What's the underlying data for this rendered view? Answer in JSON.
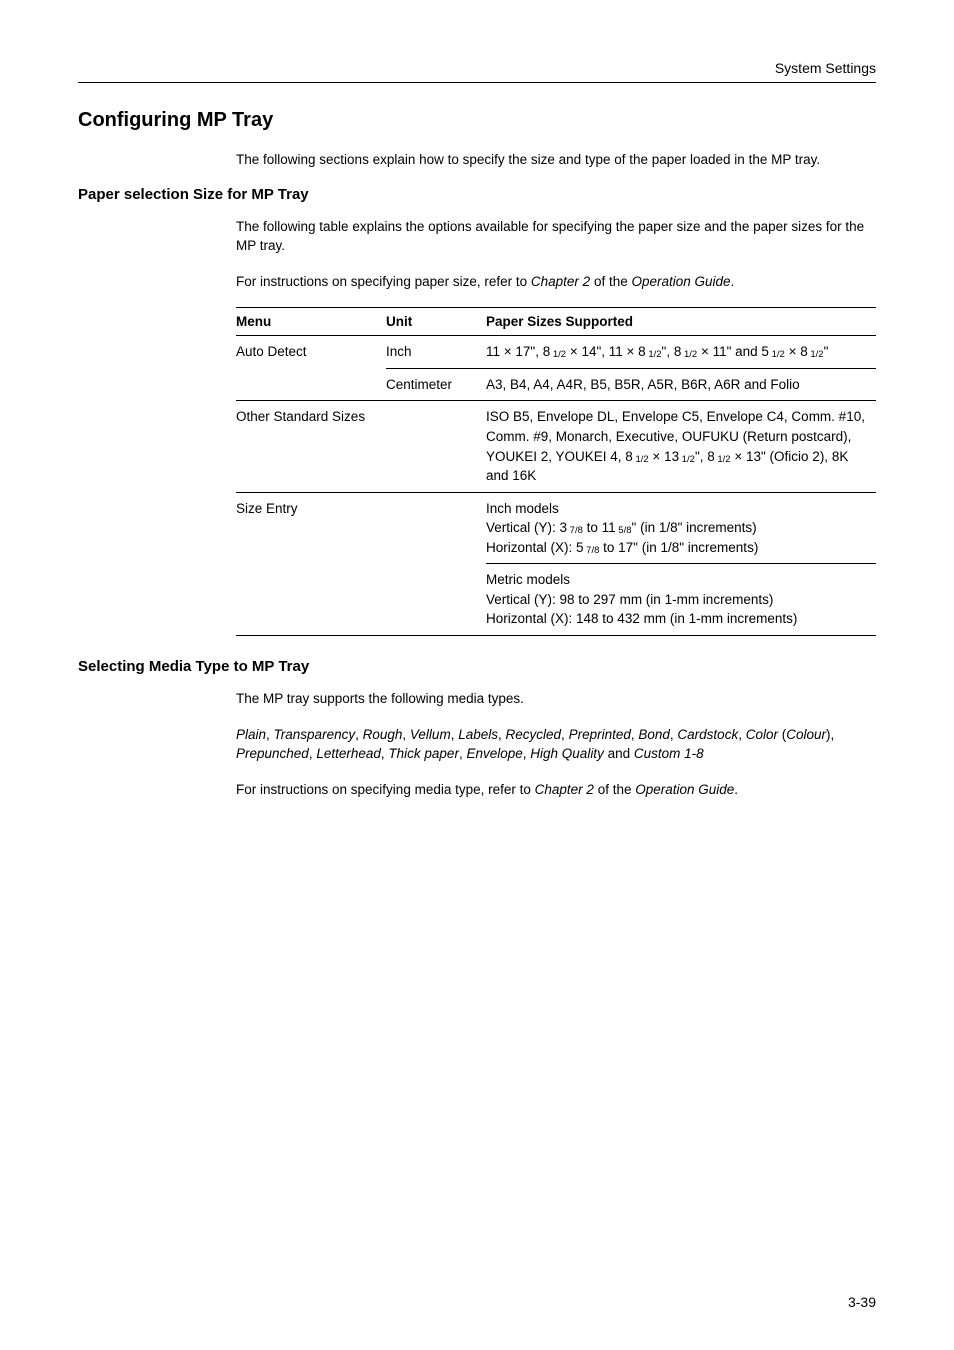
{
  "header": {
    "section_title": "System Settings"
  },
  "h1": "Configuring MP Tray",
  "intro": "The following sections explain how to specify the size and type of the paper loaded in the MP tray.",
  "section1": {
    "title": "Paper selection Size for MP Tray",
    "p1": "The following table explains the options available for specifying the paper size and the paper sizes for the MP tray.",
    "p2_a": "For instructions on specifying paper size, refer to ",
    "p2_i1": "Chapter 2",
    "p2_b": " of the ",
    "p2_i2": "Operation Guide",
    "p2_c": "."
  },
  "table": {
    "head": {
      "menu": "Menu",
      "unit": "Unit",
      "sizes": "Paper Sizes Supported"
    },
    "r1": {
      "menu": "Auto Detect",
      "unit": "Inch"
    },
    "r1_sizes": {
      "a": "11 × 17\", 8",
      "s1": " 1/2",
      "b": " × 14\", 11 × 8",
      "s2": " 1/2",
      "c": "\", 8",
      "s3": " 1/2",
      "d": " × 11\" and 5",
      "s4": " 1/2",
      "e": " × 8",
      "s5": " 1/2",
      "f": "\""
    },
    "r2": {
      "unit": "Centimeter",
      "sizes": "A3, B4, A4, A4R, B5, B5R, A5R, B6R, A6R and Folio"
    },
    "r3": {
      "menu": "Other Standard Sizes"
    },
    "r3_sizes": {
      "a": "ISO B5, Envelope DL, Envelope C5, Envelope C4, Comm. #10, Comm. #9, Monarch, Executive, OUFUKU (Return postcard), YOUKEI 2, YOUKEI 4, 8",
      "s1": " 1/2",
      "b": " × 13",
      "s2": " 1/2",
      "c": "\", 8",
      "s3": " 1/2",
      "d": " × 13\" (Oficio 2), 8K and 16K"
    },
    "r4": {
      "menu": "Size Entry"
    },
    "r4_sizes": {
      "l1": "Inch models",
      "l2a": "Vertical (Y): 3",
      "l2s1": " 7/8",
      "l2b": " to 11",
      "l2s2": " 5/8",
      "l2c": "\" (in 1/8\" increments)",
      "l3a": "Horizontal (X): 5",
      "l3s1": " 7/8",
      "l3b": " to 17\" (in 1/8\" increments)"
    },
    "r5_sizes": {
      "l1": "Metric models",
      "l2": "Vertical (Y): 98 to 297 mm (in 1-mm increments)",
      "l3": "Horizontal (X): 148 to 432 mm (in 1-mm increments)"
    }
  },
  "section2": {
    "title": "Selecting Media Type to MP Tray",
    "p1": "The MP tray supports the following media types.",
    "types": {
      "i1": "Plain",
      "c1": ", ",
      "i2": "Transparency",
      "c2": ", ",
      "i3": "Rough",
      "c3": ", ",
      "i4": "Vellum",
      "c4": ", ",
      "i5": "Labels",
      "c5": ", ",
      "i6": "Recycled",
      "c6": ", ",
      "i7": "Preprinted",
      "c7": ", ",
      "i8": "Bond",
      "c8": ", ",
      "i9": "Cardstock",
      "c9": ", ",
      "i10": "Color",
      "c10": " (",
      "i11": "Colour",
      "c11": "), ",
      "i12": "Prepunched",
      "c12": ", ",
      "i13": "Letterhead",
      "c13": ", ",
      "i14": "Thick paper",
      "c14": ", ",
      "i15": "Envelope",
      "c15": ", ",
      "i16": "High Quality",
      "c16": " and ",
      "i17": "Custom 1-8"
    },
    "p3_a": "For instructions on specifying media type, refer to ",
    "p3_i1": "Chapter 2",
    "p3_b": " of the ",
    "p3_i2": "Operation Guide",
    "p3_c": "."
  },
  "page_number": "3-39"
}
